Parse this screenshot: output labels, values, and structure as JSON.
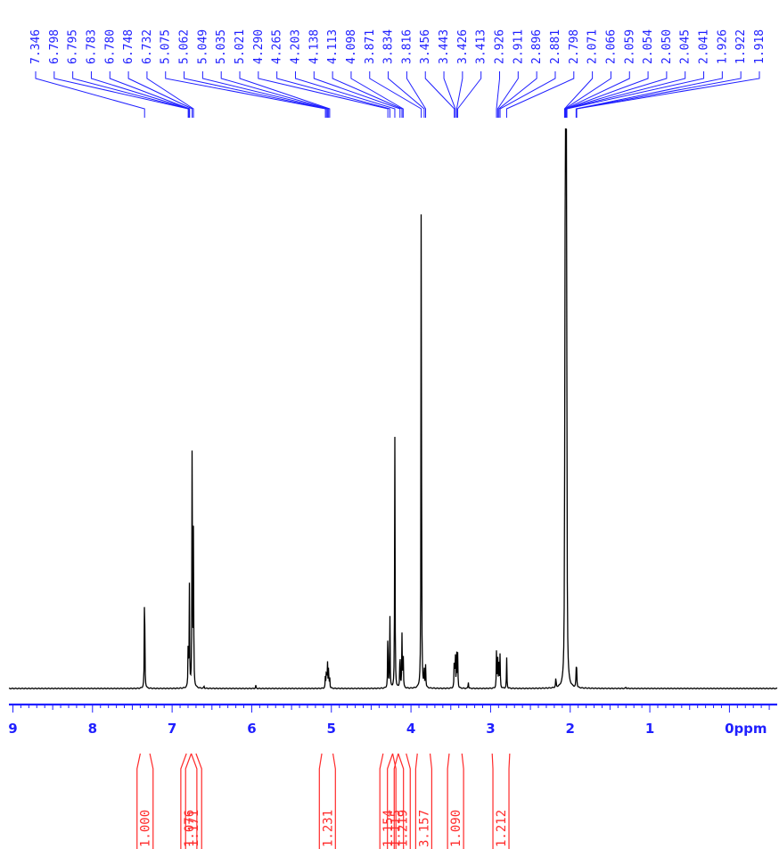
{
  "chart_data": {
    "type": "line",
    "xlabel": "ppm",
    "xlim": [
      9.05,
      -0.6
    ],
    "x_ticks": [
      "9",
      "8",
      "7",
      "6",
      "5",
      "4",
      "3",
      "2",
      "1",
      "0"
    ],
    "tick_values": [
      9,
      8,
      7,
      6,
      5,
      4,
      3,
      2,
      1,
      0
    ],
    "peak_labels": [
      "7.346",
      "6.798",
      "6.795",
      "6.783",
      "6.780",
      "6.748",
      "6.732",
      "5.075",
      "5.062",
      "5.049",
      "5.035",
      "5.021",
      "4.290",
      "4.265",
      "4.203",
      "4.138",
      "4.113",
      "4.098",
      "3.871",
      "3.834",
      "3.816",
      "3.456",
      "3.443",
      "3.426",
      "3.413",
      "2.926",
      "2.911",
      "2.896",
      "2.881",
      "2.798",
      "2.071",
      "2.066",
      "2.059",
      "2.054",
      "2.050",
      "2.045",
      "2.041",
      "1.926",
      "1.922",
      "1.918"
    ],
    "peak_positions": [
      7.346,
      6.798,
      6.795,
      6.783,
      6.78,
      6.748,
      6.732,
      5.075,
      5.062,
      5.049,
      5.035,
      5.021,
      4.29,
      4.265,
      4.203,
      4.138,
      4.113,
      4.098,
      3.871,
      3.834,
      3.816,
      3.456,
      3.443,
      3.426,
      3.413,
      2.926,
      2.911,
      2.896,
      2.881,
      2.798,
      2.071,
      2.066,
      2.059,
      2.054,
      2.05,
      2.045,
      2.041,
      1.926,
      1.922,
      1.918
    ],
    "spectrum_peaks": [
      {
        "ppm": 7.346,
        "intensity": 0.225
      },
      {
        "ppm": 6.798,
        "intensity": 0.09
      },
      {
        "ppm": 6.783,
        "intensity": 0.18
      },
      {
        "ppm": 6.748,
        "intensity": 0.5
      },
      {
        "ppm": 6.732,
        "intensity": 0.28
      },
      {
        "ppm": 6.6,
        "intensity": 0.004
      },
      {
        "ppm": 5.95,
        "intensity": 0.006
      },
      {
        "ppm": 5.075,
        "intensity": 0.02
      },
      {
        "ppm": 5.062,
        "intensity": 0.04
      },
      {
        "ppm": 5.049,
        "intensity": 0.05
      },
      {
        "ppm": 5.035,
        "intensity": 0.04
      },
      {
        "ppm": 5.021,
        "intensity": 0.02
      },
      {
        "ppm": 4.29,
        "intensity": 0.12
      },
      {
        "ppm": 4.265,
        "intensity": 0.135
      },
      {
        "ppm": 4.203,
        "intensity": 0.455
      },
      {
        "ppm": 4.138,
        "intensity": 0.08
      },
      {
        "ppm": 4.113,
        "intensity": 0.095
      },
      {
        "ppm": 4.098,
        "intensity": 0.07
      },
      {
        "ppm": 3.871,
        "intensity": 1.0
      },
      {
        "ppm": 3.834,
        "intensity": 0.03
      },
      {
        "ppm": 3.816,
        "intensity": 0.04
      },
      {
        "ppm": 3.456,
        "intensity": 0.06
      },
      {
        "ppm": 3.443,
        "intensity": 0.07
      },
      {
        "ppm": 3.426,
        "intensity": 0.07
      },
      {
        "ppm": 3.413,
        "intensity": 0.06
      },
      {
        "ppm": 3.28,
        "intensity": 0.012
      },
      {
        "ppm": 2.926,
        "intensity": 0.065
      },
      {
        "ppm": 2.911,
        "intensity": 0.06
      },
      {
        "ppm": 2.896,
        "intensity": 0.065
      },
      {
        "ppm": 2.881,
        "intensity": 0.06
      },
      {
        "ppm": 2.798,
        "intensity": 0.055
      },
      {
        "ppm": 2.071,
        "intensity": 0.05
      },
      {
        "ppm": 2.066,
        "intensity": 0.55
      },
      {
        "ppm": 2.059,
        "intensity": 0.9
      },
      {
        "ppm": 2.054,
        "intensity": 1.0
      },
      {
        "ppm": 2.05,
        "intensity": 0.9
      },
      {
        "ppm": 2.045,
        "intensity": 0.55
      },
      {
        "ppm": 2.041,
        "intensity": 0.06
      },
      {
        "ppm": 2.18,
        "intensity": 0.02
      },
      {
        "ppm": 1.926,
        "intensity": 0.02
      },
      {
        "ppm": 1.922,
        "intensity": 0.025
      },
      {
        "ppm": 1.918,
        "intensity": 0.02
      },
      {
        "ppm": 1.3,
        "intensity": 0.003
      }
    ],
    "integrals": [
      {
        "value": "1.000",
        "from": 7.4,
        "to": 7.28
      },
      {
        "value": "1.076",
        "from": 6.82,
        "to": 6.76
      },
      {
        "value": "1.171",
        "from": 6.76,
        "to": 6.7
      },
      {
        "value": "1.231",
        "from": 5.12,
        "to": 4.98
      },
      {
        "value": "1.154",
        "from": 4.35,
        "to": 4.23
      },
      {
        "value": "1.115",
        "from": 4.23,
        "to": 4.16
      },
      {
        "value": "1.219",
        "from": 4.16,
        "to": 4.06
      },
      {
        "value": "3.157",
        "from": 3.92,
        "to": 3.76
      },
      {
        "value": "1.090",
        "from": 3.52,
        "to": 3.36
      },
      {
        "value": "1.212",
        "from": 2.98,
        "to": 2.76
      }
    ],
    "colors": {
      "spectrum": "#000000",
      "axis": "#1f1fff",
      "peak_labels": "#1f1fff",
      "integrals": "#ff2a2a"
    }
  }
}
